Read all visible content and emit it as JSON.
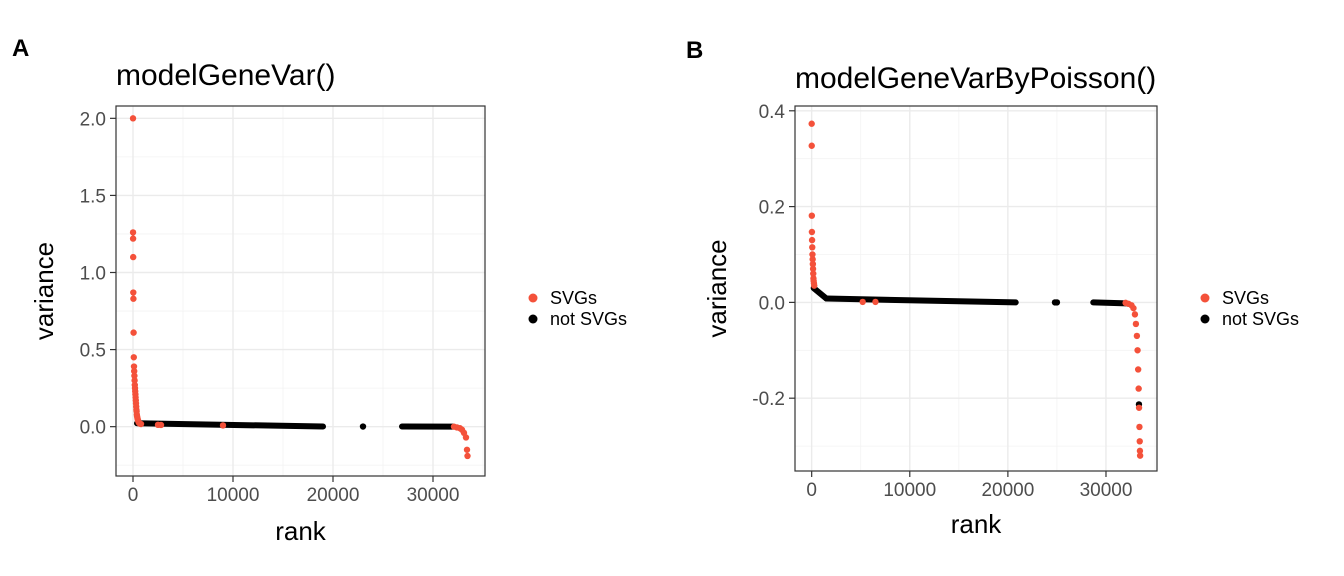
{
  "colors": {
    "svg": "#f4513a",
    "not_svg": "#000000"
  },
  "chart_data": [
    {
      "panel": "A",
      "type": "scatter",
      "title": "modelGeneVar()",
      "xlabel": "rank",
      "ylabel": "variance",
      "xlim": [
        -1700,
        35200
      ],
      "ylim": [
        -0.32,
        2.08
      ],
      "xticks": [
        0,
        10000,
        20000,
        30000
      ],
      "xtick_labels": [
        "0",
        "10000",
        "20000",
        "30000"
      ],
      "yticks": [
        0.0,
        0.5,
        1.0,
        1.5,
        2.0
      ],
      "ytick_labels": [
        "0.0",
        "0.5",
        "1.0",
        "1.5",
        "2.0"
      ],
      "legend_position": "right",
      "series": [
        {
          "name": "SVGs",
          "color": "#f4513a",
          "points": [
            [
              1,
              2.0
            ],
            [
              5,
              1.26
            ],
            [
              10,
              1.22
            ],
            [
              20,
              1.1
            ],
            [
              30,
              0.87
            ],
            [
              40,
              0.83
            ],
            [
              60,
              0.61
            ],
            [
              80,
              0.45
            ],
            [
              100,
              0.39
            ],
            [
              120,
              0.36
            ],
            [
              140,
              0.33
            ],
            [
              160,
              0.3
            ],
            [
              180,
              0.27
            ],
            [
              200,
              0.25
            ],
            [
              220,
              0.23
            ],
            [
              240,
              0.21
            ],
            [
              260,
              0.19
            ],
            [
              280,
              0.17
            ],
            [
              300,
              0.15
            ],
            [
              320,
              0.13
            ],
            [
              340,
              0.11
            ],
            [
              360,
              0.1
            ],
            [
              380,
              0.08
            ],
            [
              400,
              0.07
            ],
            [
              430,
              0.06
            ],
            [
              460,
              0.05
            ],
            [
              500,
              0.04
            ],
            [
              550,
              0.03
            ],
            [
              600,
              0.025
            ],
            [
              700,
              0.02
            ],
            [
              800,
              0.017
            ],
            [
              2500,
              0.012
            ],
            [
              2800,
              0.011
            ],
            [
              9000,
              0.008
            ],
            [
              32100,
              0.0
            ],
            [
              32400,
              -0.005
            ],
            [
              32700,
              -0.01
            ],
            [
              32900,
              -0.02
            ],
            [
              33100,
              -0.04
            ],
            [
              33300,
              -0.07
            ],
            [
              33400,
              -0.15
            ],
            [
              33450,
              -0.19
            ]
          ]
        },
        {
          "name": "not SVGs",
          "color": "#000000",
          "segments": [
            {
              "x0": 400,
              "x1": 19000,
              "y0": 0.022,
              "y1": 0.001
            },
            {
              "x0": 26900,
              "x1": 32000,
              "y0": 0.001,
              "y1": 0.0
            }
          ],
          "points": [
            [
              23000,
              0.001
            ]
          ]
        }
      ]
    },
    {
      "panel": "B",
      "type": "scatter",
      "title": "modelGeneVarByPoisson()",
      "xlabel": "rank",
      "ylabel": "variance",
      "xlim": [
        -1700,
        35200
      ],
      "ylim": [
        -0.352,
        0.41
      ],
      "xticks": [
        0,
        10000,
        20000,
        30000
      ],
      "xtick_labels": [
        "0",
        "10000",
        "20000",
        "30000"
      ],
      "yticks": [
        -0.2,
        0.0,
        0.2,
        0.4
      ],
      "ytick_labels": [
        "-0.2",
        "0.0",
        "0.2",
        "0.4"
      ],
      "legend_position": "right",
      "series": [
        {
          "name": "SVGs",
          "color": "#f4513a",
          "points": [
            [
              1,
              0.373
            ],
            [
              5,
              0.327
            ],
            [
              15,
              0.181
            ],
            [
              25,
              0.147
            ],
            [
              40,
              0.13
            ],
            [
              60,
              0.115
            ],
            [
              80,
              0.1
            ],
            [
              100,
              0.09
            ],
            [
              120,
              0.08
            ],
            [
              140,
              0.07
            ],
            [
              160,
              0.06
            ],
            [
              180,
              0.05
            ],
            [
              200,
              0.045
            ],
            [
              230,
              0.04
            ],
            [
              260,
              0.035
            ],
            [
              5200,
              0.001
            ],
            [
              6500,
              0.001
            ],
            [
              32000,
              -0.001
            ],
            [
              32300,
              -0.003
            ],
            [
              32600,
              -0.006
            ],
            [
              32800,
              -0.012
            ],
            [
              32950,
              -0.025
            ],
            [
              33050,
              -0.045
            ],
            [
              33150,
              -0.07
            ],
            [
              33220,
              -0.1
            ],
            [
              33280,
              -0.14
            ],
            [
              33330,
              -0.18
            ],
            [
              33370,
              -0.22
            ],
            [
              33410,
              -0.26
            ],
            [
              33440,
              -0.29
            ],
            [
              33460,
              -0.31
            ],
            [
              33480,
              -0.32
            ]
          ]
        },
        {
          "name": "not SVGs",
          "color": "#000000",
          "segments": [
            {
              "x0": 200,
              "x1": 1500,
              "y0": 0.03,
              "y1": 0.008
            },
            {
              "x0": 1500,
              "x1": 20800,
              "y0": 0.008,
              "y1": 0.0
            },
            {
              "x0": 28700,
              "x1": 32100,
              "y0": 0.0,
              "y1": -0.002
            }
          ],
          "points": [
            [
              24800,
              0.0
            ],
            [
              25000,
              0.0
            ],
            [
              33360,
              -0.213
            ]
          ]
        }
      ]
    }
  ]
}
